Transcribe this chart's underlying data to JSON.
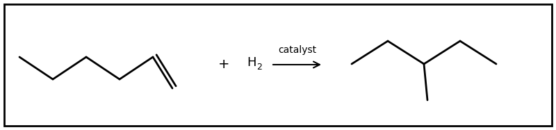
{
  "background_color": "#ffffff",
  "border_color": "#000000",
  "line_color": "#000000",
  "line_width": 2.0,
  "catalyst_text": "catalyst",
  "catalyst_fontsize": 10,
  "plus_text": "+",
  "h2_text": "H",
  "h2_sub": "2"
}
